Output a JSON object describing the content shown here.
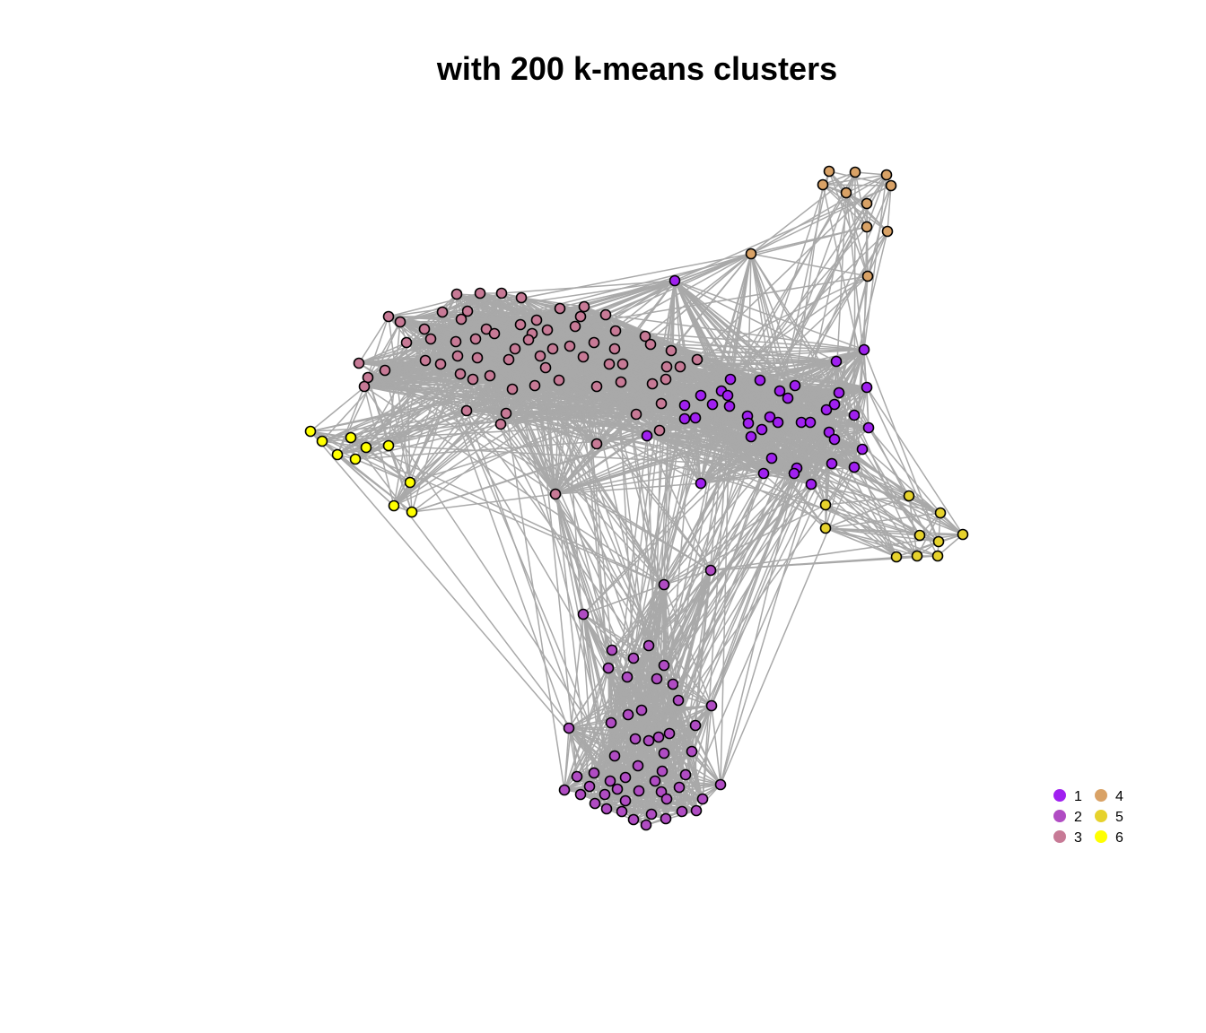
{
  "title": "with 200 k-means clusters",
  "colors": {
    "1": "#a020f0",
    "2": "#b04cc3",
    "3": "#c77a96",
    "4": "#d9a266",
    "5": "#e6d22c",
    "6": "#ffff00",
    "edge": "#a9a9a9",
    "node_stroke": "#000000"
  },
  "legend": [
    {
      "cluster": "1",
      "label": "1"
    },
    {
      "cluster": "2",
      "label": "2"
    },
    {
      "cluster": "3",
      "label": "3"
    },
    {
      "cluster": "4",
      "label": "4"
    },
    {
      "cluster": "5",
      "label": "5"
    },
    {
      "cluster": "6",
      "label": "6"
    }
  ]
}
